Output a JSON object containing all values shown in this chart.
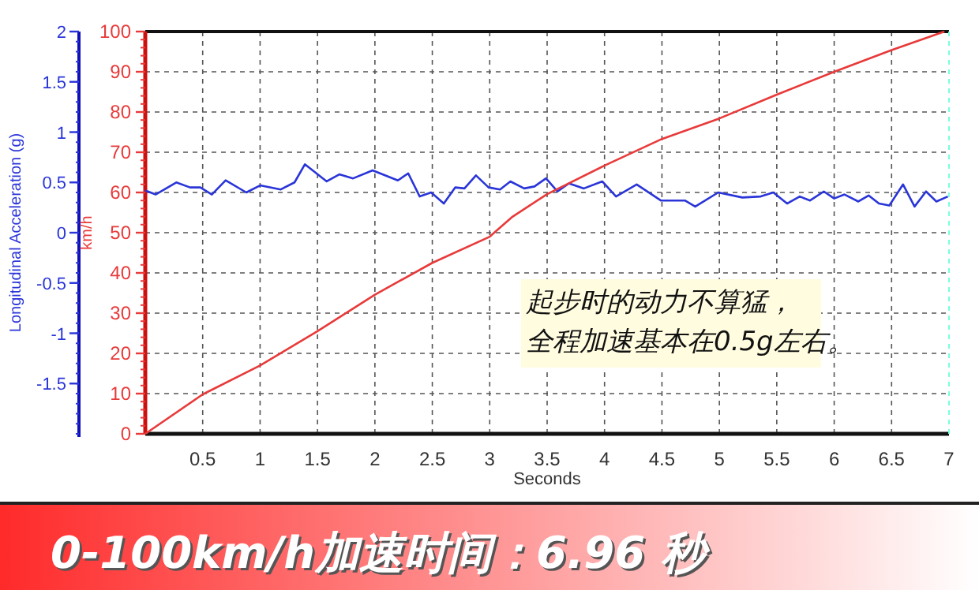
{
  "chart_data": {
    "type": "line",
    "title": "0-100km/h加速时间：6.96 秒",
    "xlabel": "Seconds",
    "ylabel": "Longitudinal Acceleration (g)",
    "y2label": "km/h",
    "annotations": [
      "起步时的动力不算猛，",
      "全程加速基本在0.5g左右。"
    ],
    "xlim": [
      0,
      7
    ],
    "xticks": [
      0.5,
      1,
      1.5,
      2,
      2.5,
      3,
      3.5,
      4,
      4.5,
      5,
      5.5,
      6,
      6.5,
      7
    ],
    "ylim": [
      -2,
      2
    ],
    "yticks": [
      -1.5,
      -1,
      -0.5,
      0,
      0.5,
      1,
      1.5,
      2
    ],
    "y2lim": [
      0,
      100
    ],
    "y2ticks": [
      0,
      10,
      20,
      30,
      40,
      50,
      60,
      70,
      80,
      90,
      100
    ],
    "grid": true,
    "series": [
      {
        "color": "#2a35d8",
        "axis": "y",
        "x": [
          0,
          0.09,
          0.27,
          0.39,
          0.48,
          0.58,
          0.7,
          0.88,
          1.0,
          1.18,
          1.3,
          1.39,
          1.58,
          1.69,
          1.81,
          1.98,
          2.2,
          2.29,
          2.39,
          2.49,
          2.6,
          2.7,
          2.78,
          2.88,
          2.99,
          3.09,
          3.18,
          3.3,
          3.39,
          3.49,
          3.59,
          3.69,
          3.82,
          3.98,
          4.1,
          4.28,
          4.49,
          4.7,
          4.79,
          4.99,
          5.2,
          5.36,
          5.47,
          5.59,
          5.7,
          5.79,
          5.91,
          6.0,
          6.09,
          6.21,
          6.3,
          6.39,
          6.48,
          6.6,
          6.7,
          6.8,
          6.89,
          6.99
        ],
        "values": [
          0.42,
          0.38,
          0.5,
          0.45,
          0.45,
          0.38,
          0.52,
          0.4,
          0.47,
          0.43,
          0.5,
          0.68,
          0.51,
          0.58,
          0.54,
          0.62,
          0.52,
          0.59,
          0.36,
          0.4,
          0.29,
          0.45,
          0.44,
          0.57,
          0.45,
          0.43,
          0.51,
          0.44,
          0.46,
          0.54,
          0.41,
          0.49,
          0.44,
          0.51,
          0.36,
          0.48,
          0.32,
          0.32,
          0.26,
          0.4,
          0.35,
          0.36,
          0.4,
          0.29,
          0.36,
          0.32,
          0.41,
          0.34,
          0.38,
          0.31,
          0.37,
          0.29,
          0.27,
          0.48,
          0.26,
          0.41,
          0.31,
          0.36
        ]
      },
      {
        "color": "#e83a3a",
        "axis": "y2",
        "x": [
          0,
          0.5,
          1,
          1.5,
          2,
          2.5,
          3,
          3.2,
          3.5,
          4,
          4.5,
          5,
          5.5,
          6,
          6.5,
          6.96
        ],
        "values": [
          0,
          9.8,
          17,
          25.5,
          34.6,
          42.5,
          49,
          54,
          59.6,
          66.7,
          73.3,
          78.4,
          84.3,
          90,
          95.4,
          100
        ]
      }
    ]
  }
}
